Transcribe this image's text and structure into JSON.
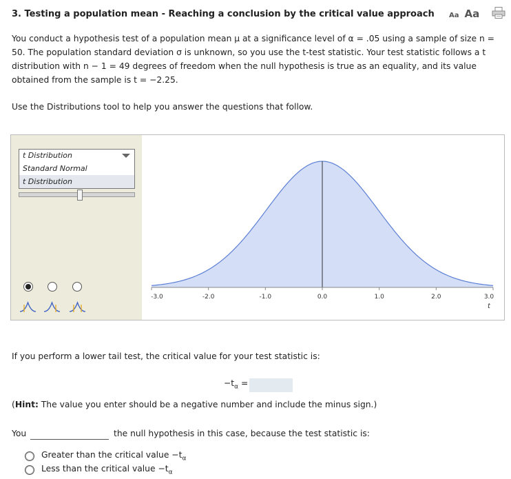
{
  "header": {
    "title": "3. Testing a population mean - Reaching a conclusion by the critical value approach",
    "font_small_label": "Aa",
    "font_large_label": "Aa",
    "print_icon": "printer-icon"
  },
  "intro": {
    "paragraph": "You conduct a hypothesis test of a population mean μ at a significance level of α = .05 using a sample of size n = 50. The population standard deviation σ is unknown, so you use the t-test statistic. Your test statistic follows a t distribution with n − 1 = 49 degrees of freedom when the null hypothesis is true as an equality, and its value obtained from the sample is t = −2.25.",
    "instruction": "Use the Distributions tool to help you answer the questions that follow."
  },
  "tool": {
    "distribution_select": {
      "selected": "t Distribution",
      "options": [
        "Standard Normal",
        "t Distribution"
      ]
    },
    "df_slider_fraction": 0.52,
    "tail_options": [
      {
        "name": "one-tail-left",
        "selected": true
      },
      {
        "name": "two-tail",
        "selected": false
      },
      {
        "name": "one-tail-right",
        "selected": false
      }
    ],
    "colors": {
      "panel": "#ecebdc",
      "fill": "#d5def7",
      "curve": "#5b7fd4"
    }
  },
  "chart_data": {
    "type": "area",
    "x_ticks": [
      "-3.0",
      "-2.0",
      "-1.0",
      "0.0",
      "1.0",
      "2.0",
      "3.0"
    ],
    "xlabel": "t",
    "xlim": [
      -3,
      3
    ],
    "df": 49,
    "center_line": 0
  },
  "question1": {
    "text": "If you perform a lower tail test, the critical value for your test statistic is:",
    "critical_label": "−t",
    "critical_sub": "α",
    "critical_eq": "=",
    "critical_value": "",
    "hint_bold": "Hint:",
    "hint_text": " The value you enter should be a negative number and include the minus sign.)",
    "hint_open": "("
  },
  "question2": {
    "you": "You",
    "null_text": "the null hypothesis in this case, because the test statistic is:",
    "options": [
      {
        "label": "Greater than the critical value −t",
        "sub": "α"
      },
      {
        "label": "Less than the critical value −t",
        "sub": "α"
      }
    ]
  }
}
